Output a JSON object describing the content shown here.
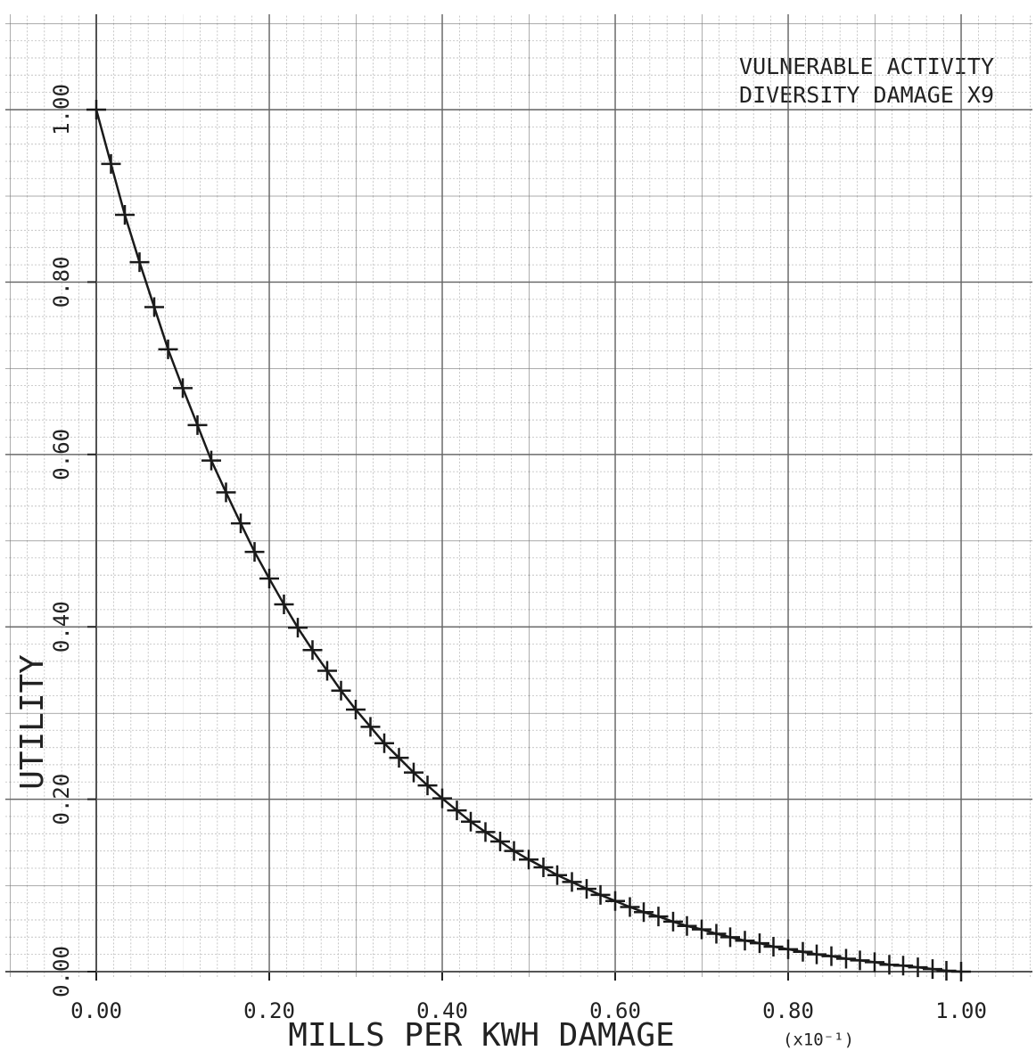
{
  "chart_data": {
    "type": "line",
    "annotation": [
      "VULNERABLE ACTIVITY",
      "DIVERSITY DAMAGE X9"
    ],
    "xlabel": "MILLS PER KWH DAMAGE",
    "xlabel_multiplier": "(x10⁻¹)",
    "ylabel": "UTILITY",
    "color": "#1a1a1a",
    "marker": "plus",
    "grid": true,
    "xlim": [
      0,
      1
    ],
    "ylim": [
      0,
      1
    ],
    "xticks": [
      {
        "value": 0,
        "label": "0.00"
      },
      {
        "value": 0.2,
        "label": "0.20"
      },
      {
        "value": 0.4,
        "label": "0.40"
      },
      {
        "value": 0.6,
        "label": "0.60"
      },
      {
        "value": 0.8,
        "label": "0.80"
      },
      {
        "value": 1,
        "label": "1.00"
      }
    ],
    "yticks": [
      {
        "value": 0,
        "label": "0.00"
      },
      {
        "value": 0.2,
        "label": "0.20"
      },
      {
        "value": 0.4,
        "label": "0.40"
      },
      {
        "value": 0.6,
        "label": "0.60"
      },
      {
        "value": 0.8,
        "label": "0.80"
      },
      {
        "value": 1,
        "label": "1.00"
      }
    ],
    "x": [
      0,
      0.017,
      0.033,
      0.05,
      0.067,
      0.083,
      0.1,
      0.117,
      0.133,
      0.15,
      0.167,
      0.183,
      0.2,
      0.217,
      0.233,
      0.25,
      0.267,
      0.283,
      0.3,
      0.317,
      0.333,
      0.35,
      0.367,
      0.383,
      0.4,
      0.417,
      0.433,
      0.45,
      0.467,
      0.483,
      0.5,
      0.517,
      0.533,
      0.55,
      0.567,
      0.583,
      0.6,
      0.617,
      0.633,
      0.65,
      0.667,
      0.683,
      0.7,
      0.717,
      0.733,
      0.75,
      0.767,
      0.783,
      0.8,
      0.817,
      0.833,
      0.85,
      0.867,
      0.883,
      0.9,
      0.917,
      0.933,
      0.95,
      0.967,
      0.983,
      1
    ],
    "values": [
      1,
      0.937,
      0.878,
      0.823,
      0.771,
      0.722,
      0.677,
      0.634,
      0.593,
      0.556,
      0.52,
      0.487,
      0.456,
      0.426,
      0.399,
      0.373,
      0.349,
      0.326,
      0.304,
      0.284,
      0.265,
      0.248,
      0.231,
      0.216,
      0.201,
      0.187,
      0.174,
      0.162,
      0.151,
      0.14,
      0.13,
      0.121,
      0.112,
      0.104,
      0.096,
      0.089,
      0.082,
      0.075,
      0.069,
      0.064,
      0.058,
      0.053,
      0.049,
      0.044,
      0.04,
      0.036,
      0.033,
      0.029,
      0.026,
      0.023,
      0.02,
      0.018,
      0.015,
      0.013,
      0.011,
      0.008,
      0.007,
      0.005,
      0.003,
      0.001,
      0
    ]
  }
}
